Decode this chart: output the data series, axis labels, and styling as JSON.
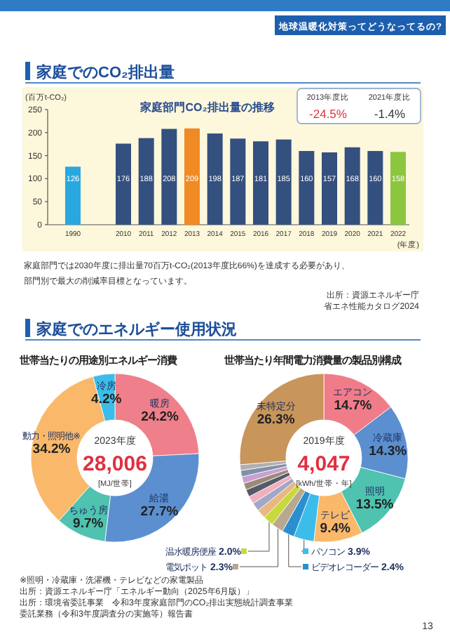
{
  "chart_data": [
    {
      "type": "bar",
      "title": "家庭部門CO₂排出量の推移",
      "ylabel": "(百万t-CO₂)",
      "xlabel": "(年度)",
      "categories": [
        "1990",
        "2010",
        "2011",
        "2012",
        "2013",
        "2014",
        "2015",
        "2016",
        "2017",
        "2018",
        "2019",
        "2020",
        "2021",
        "2022"
      ],
      "values": [
        126,
        176,
        188,
        208,
        209,
        198,
        187,
        181,
        185,
        160,
        157,
        168,
        160,
        158
      ],
      "colors": [
        "#29a8e0",
        "#34507f",
        "#34507f",
        "#34507f",
        "#f08a24",
        "#34507f",
        "#34507f",
        "#34507f",
        "#34507f",
        "#34507f",
        "#34507f",
        "#34507f",
        "#34507f",
        "#8cc63f"
      ],
      "ylim": [
        0,
        250
      ],
      "yticks": [
        0,
        50,
        100,
        150,
        200,
        250
      ],
      "data_labels": true,
      "annotations": [
        "地球温暖化対策ってどうなってるの?",
        "家庭でのCO₂排出量",
        "2013年度比",
        "-24.5%",
        "2021年度比",
        "-1.4%",
        "家庭部門では2030年度に排出量70百万t-CO₂(2013年度比66%)を達成する必要があり、",
        "部門別で最大の削減率目標となっています。",
        "出所：資源エネルギー庁",
        "省エネ性能カタログ2024"
      ]
    },
    {
      "type": "donut",
      "title": "世帯当たりの用途別エネルギー消費",
      "categories": [
        "暖房",
        "給湯",
        "ちゅう房",
        "動力・照明他※",
        "冷房"
      ],
      "values": [
        24.2,
        27.7,
        9.7,
        34.2,
        4.2
      ],
      "colors": [
        "#ef7f8a",
        "#5b8fd0",
        "#4fc2b0",
        "#f9b86a",
        "#3cbde9"
      ],
      "value_labels": [
        "24.2%",
        "27.7%",
        "9.7%",
        "34.2%",
        "4.2%"
      ],
      "annotations": [
        "家庭でのエネルギー使用状況",
        "2023年度",
        "28,006",
        "[MJ/世帯]",
        "※照明・冷蔵庫・洗濯機・テレビなどの家電製品",
        "出所：資源エネルギー庁「エネルギー動向（2025年6月版）」"
      ]
    },
    {
      "type": "donut",
      "title": "世帯当たり年間電力消費量の製品別構成",
      "categories": [
        "エアコン",
        "冷蔵庫",
        "照明",
        "テレビ",
        "パソコン",
        "ビデオレコーダー",
        "電気ポット",
        "温水暖房便座",
        null,
        null,
        null,
        null,
        null,
        null,
        null,
        null,
        "未特定分"
      ],
      "values": [
        14.7,
        14.3,
        13.5,
        9.4,
        3.9,
        2.4,
        2.3,
        2.0,
        1.8,
        1.6,
        1.5,
        1.4,
        1.3,
        1.3,
        1.2,
        1.1,
        26.3
      ],
      "colors": [
        "#f07c8a",
        "#5b8fd0",
        "#4fc2b0",
        "#f9b86a",
        "#3cbde9",
        "#2a8fd0",
        "#b8a890",
        "#c8d840",
        "#e8b880",
        "#a0a8c8",
        "#f0b0c0",
        "#555a66",
        "#9a8a7a",
        "#c8a0d0",
        "#8090a8",
        "#b0b0b0",
        "#c8955a"
      ],
      "value_labels": [
        "14.7%",
        "14.3%",
        "13.5%",
        "9.4%",
        "3.9%",
        "2.4%",
        "2.3%",
        "2.0%",
        null,
        null,
        null,
        null,
        null,
        null,
        null,
        null,
        "26.3%"
      ],
      "legend": "bottom",
      "annotations": [
        "2019年度",
        "4,047",
        "[kWh/世帯・年]",
        "出所：環境省委託事業　令和3年度家庭部門のCO₂排出実態統計調査事業",
        "委託業務（令和3年度調査分の実施等）報告書",
        "13"
      ]
    }
  ]
}
